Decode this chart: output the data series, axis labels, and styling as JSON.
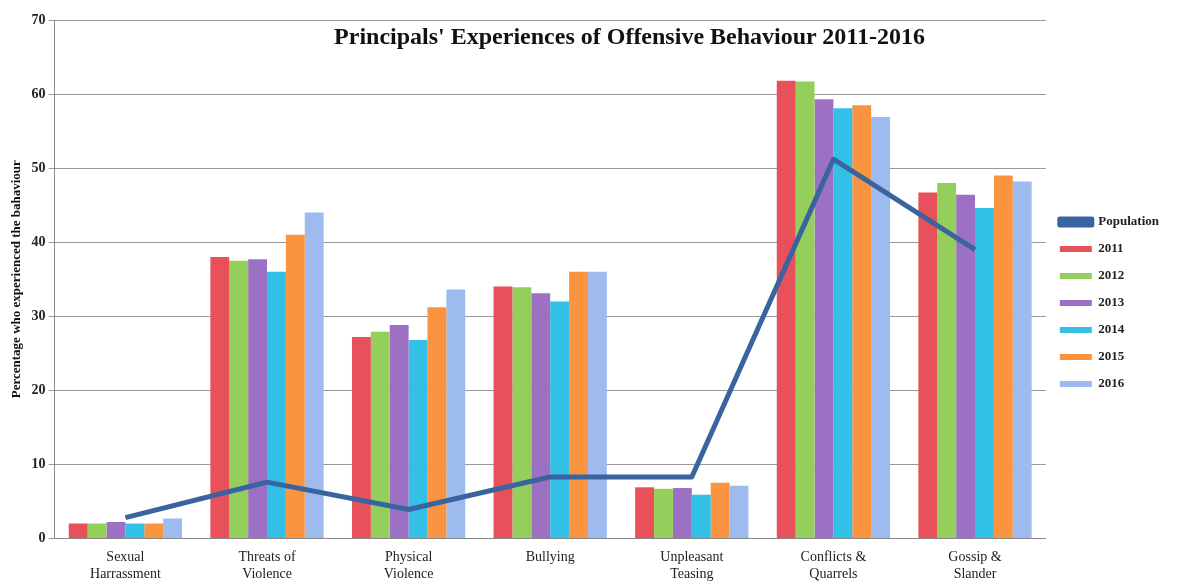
{
  "chart_data": {
    "type": "bar",
    "title": "Principals' Experiences of Offensive Behaviour 2011-2016",
    "ylabel": "Percentage who experienced the bahaviour",
    "categories": [
      "Sexual Harrassment",
      "Threats of Violence",
      "Physical Violence",
      "Bullying",
      "Unpleasant Teasing",
      "Conflicts & Quarrels",
      "Gossip & Slander"
    ],
    "series": [
      {
        "name": "2011",
        "color": "#e8505a",
        "values": [
          2,
          38,
          27.2,
          34,
          6.9,
          61.8,
          46.7
        ]
      },
      {
        "name": "2012",
        "color": "#93cf5a",
        "values": [
          2,
          37.5,
          27.9,
          33.9,
          6.7,
          61.7,
          48
        ]
      },
      {
        "name": "2013",
        "color": "#9c70c2",
        "values": [
          2.2,
          37.7,
          28.8,
          33.1,
          6.8,
          59.3,
          46.4
        ]
      },
      {
        "name": "2014",
        "color": "#33c0e6",
        "values": [
          2,
          36,
          26.8,
          32,
          5.9,
          58.1,
          44.6
        ]
      },
      {
        "name": "2015",
        "color": "#fb9440",
        "values": [
          2,
          41,
          31.2,
          36,
          7.5,
          58.5,
          49
        ]
      },
      {
        "name": "2016",
        "color": "#9dbbee",
        "values": [
          2.7,
          44,
          33.6,
          36,
          7.1,
          56.9,
          48.2
        ]
      },
      {
        "name": "Population",
        "type": "line",
        "color": "#3a64a0",
        "values": [
          2.8,
          7.6,
          3.9,
          8.3,
          8.3,
          51.2,
          39
        ]
      }
    ],
    "ylim": [
      0,
      70
    ],
    "yticks": [
      0,
      10,
      20,
      30,
      40,
      50,
      60,
      70
    ],
    "grid": "y",
    "legend": "right",
    "marker": "none"
  }
}
